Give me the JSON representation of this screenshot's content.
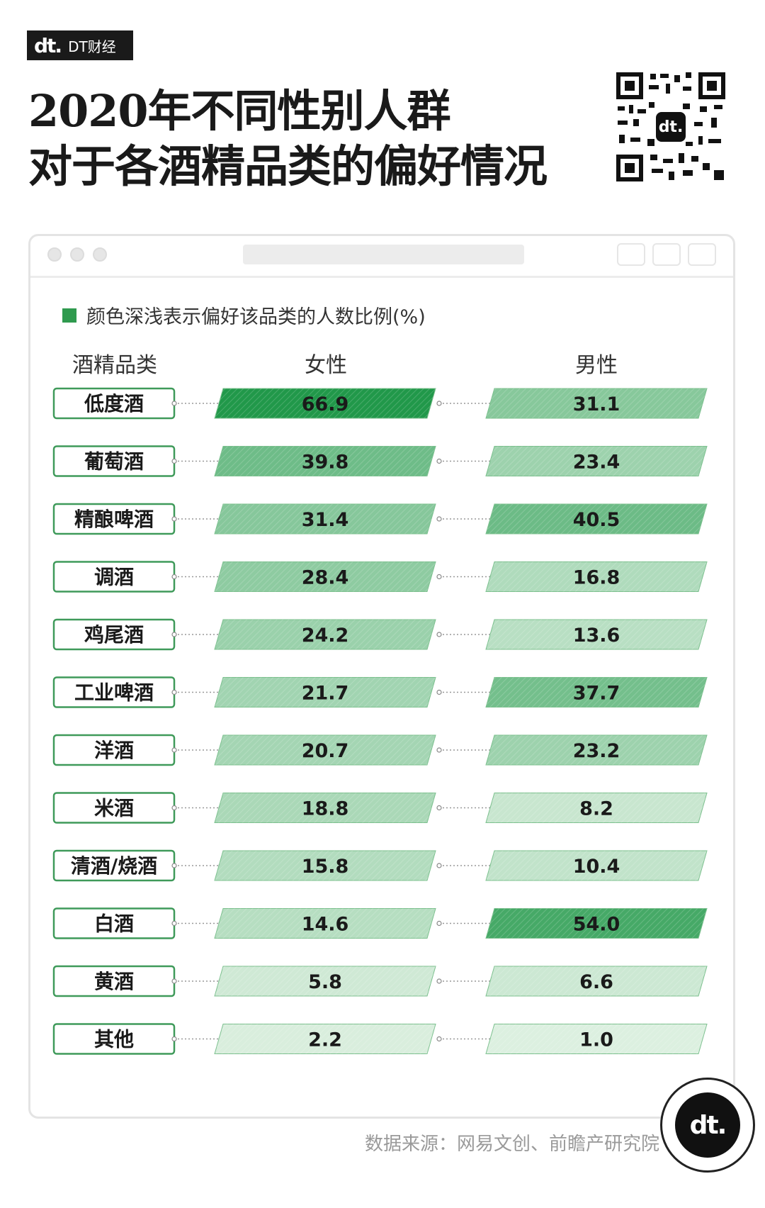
{
  "brand": {
    "logo_text": "dt.",
    "name": "DT财经"
  },
  "title_line1": "2020年不同性别人群",
  "title_line2": "对于各酒精品类的偏好情况",
  "legend_text": "颜色深浅表示偏好该品类的人数比例(%)",
  "source_text": "数据来源：网易文创、前瞻产研究院",
  "badge_text": "dt.",
  "colors": {
    "accent": "#2f9a4e",
    "light": "#dff1e2",
    "border": "#3f9a5a"
  },
  "chart_data": {
    "type": "table",
    "column_headers": [
      "酒精品类",
      "女性",
      "男性"
    ],
    "rows": [
      {
        "category": "低度酒",
        "female": 66.9,
        "male": 31.1
      },
      {
        "category": "葡萄酒",
        "female": 39.8,
        "male": 23.4
      },
      {
        "category": "精酿啤酒",
        "female": 31.4,
        "male": 40.5
      },
      {
        "category": "调酒",
        "female": 28.4,
        "male": 16.8
      },
      {
        "category": "鸡尾酒",
        "female": 24.2,
        "male": 13.6
      },
      {
        "category": "工业啤酒",
        "female": 21.7,
        "male": 37.7
      },
      {
        "category": "洋酒",
        "female": 20.7,
        "male": 23.2
      },
      {
        "category": "米酒",
        "female": 18.8,
        "male": 8.2
      },
      {
        "category": "清酒/烧酒",
        "female": 15.8,
        "male": 10.4
      },
      {
        "category": "白酒",
        "female": 14.6,
        "male": 54.0
      },
      {
        "category": "黄酒",
        "female": 5.8,
        "male": 6.6
      },
      {
        "category": "其他",
        "female": 2.2,
        "male": 1.0
      }
    ]
  }
}
